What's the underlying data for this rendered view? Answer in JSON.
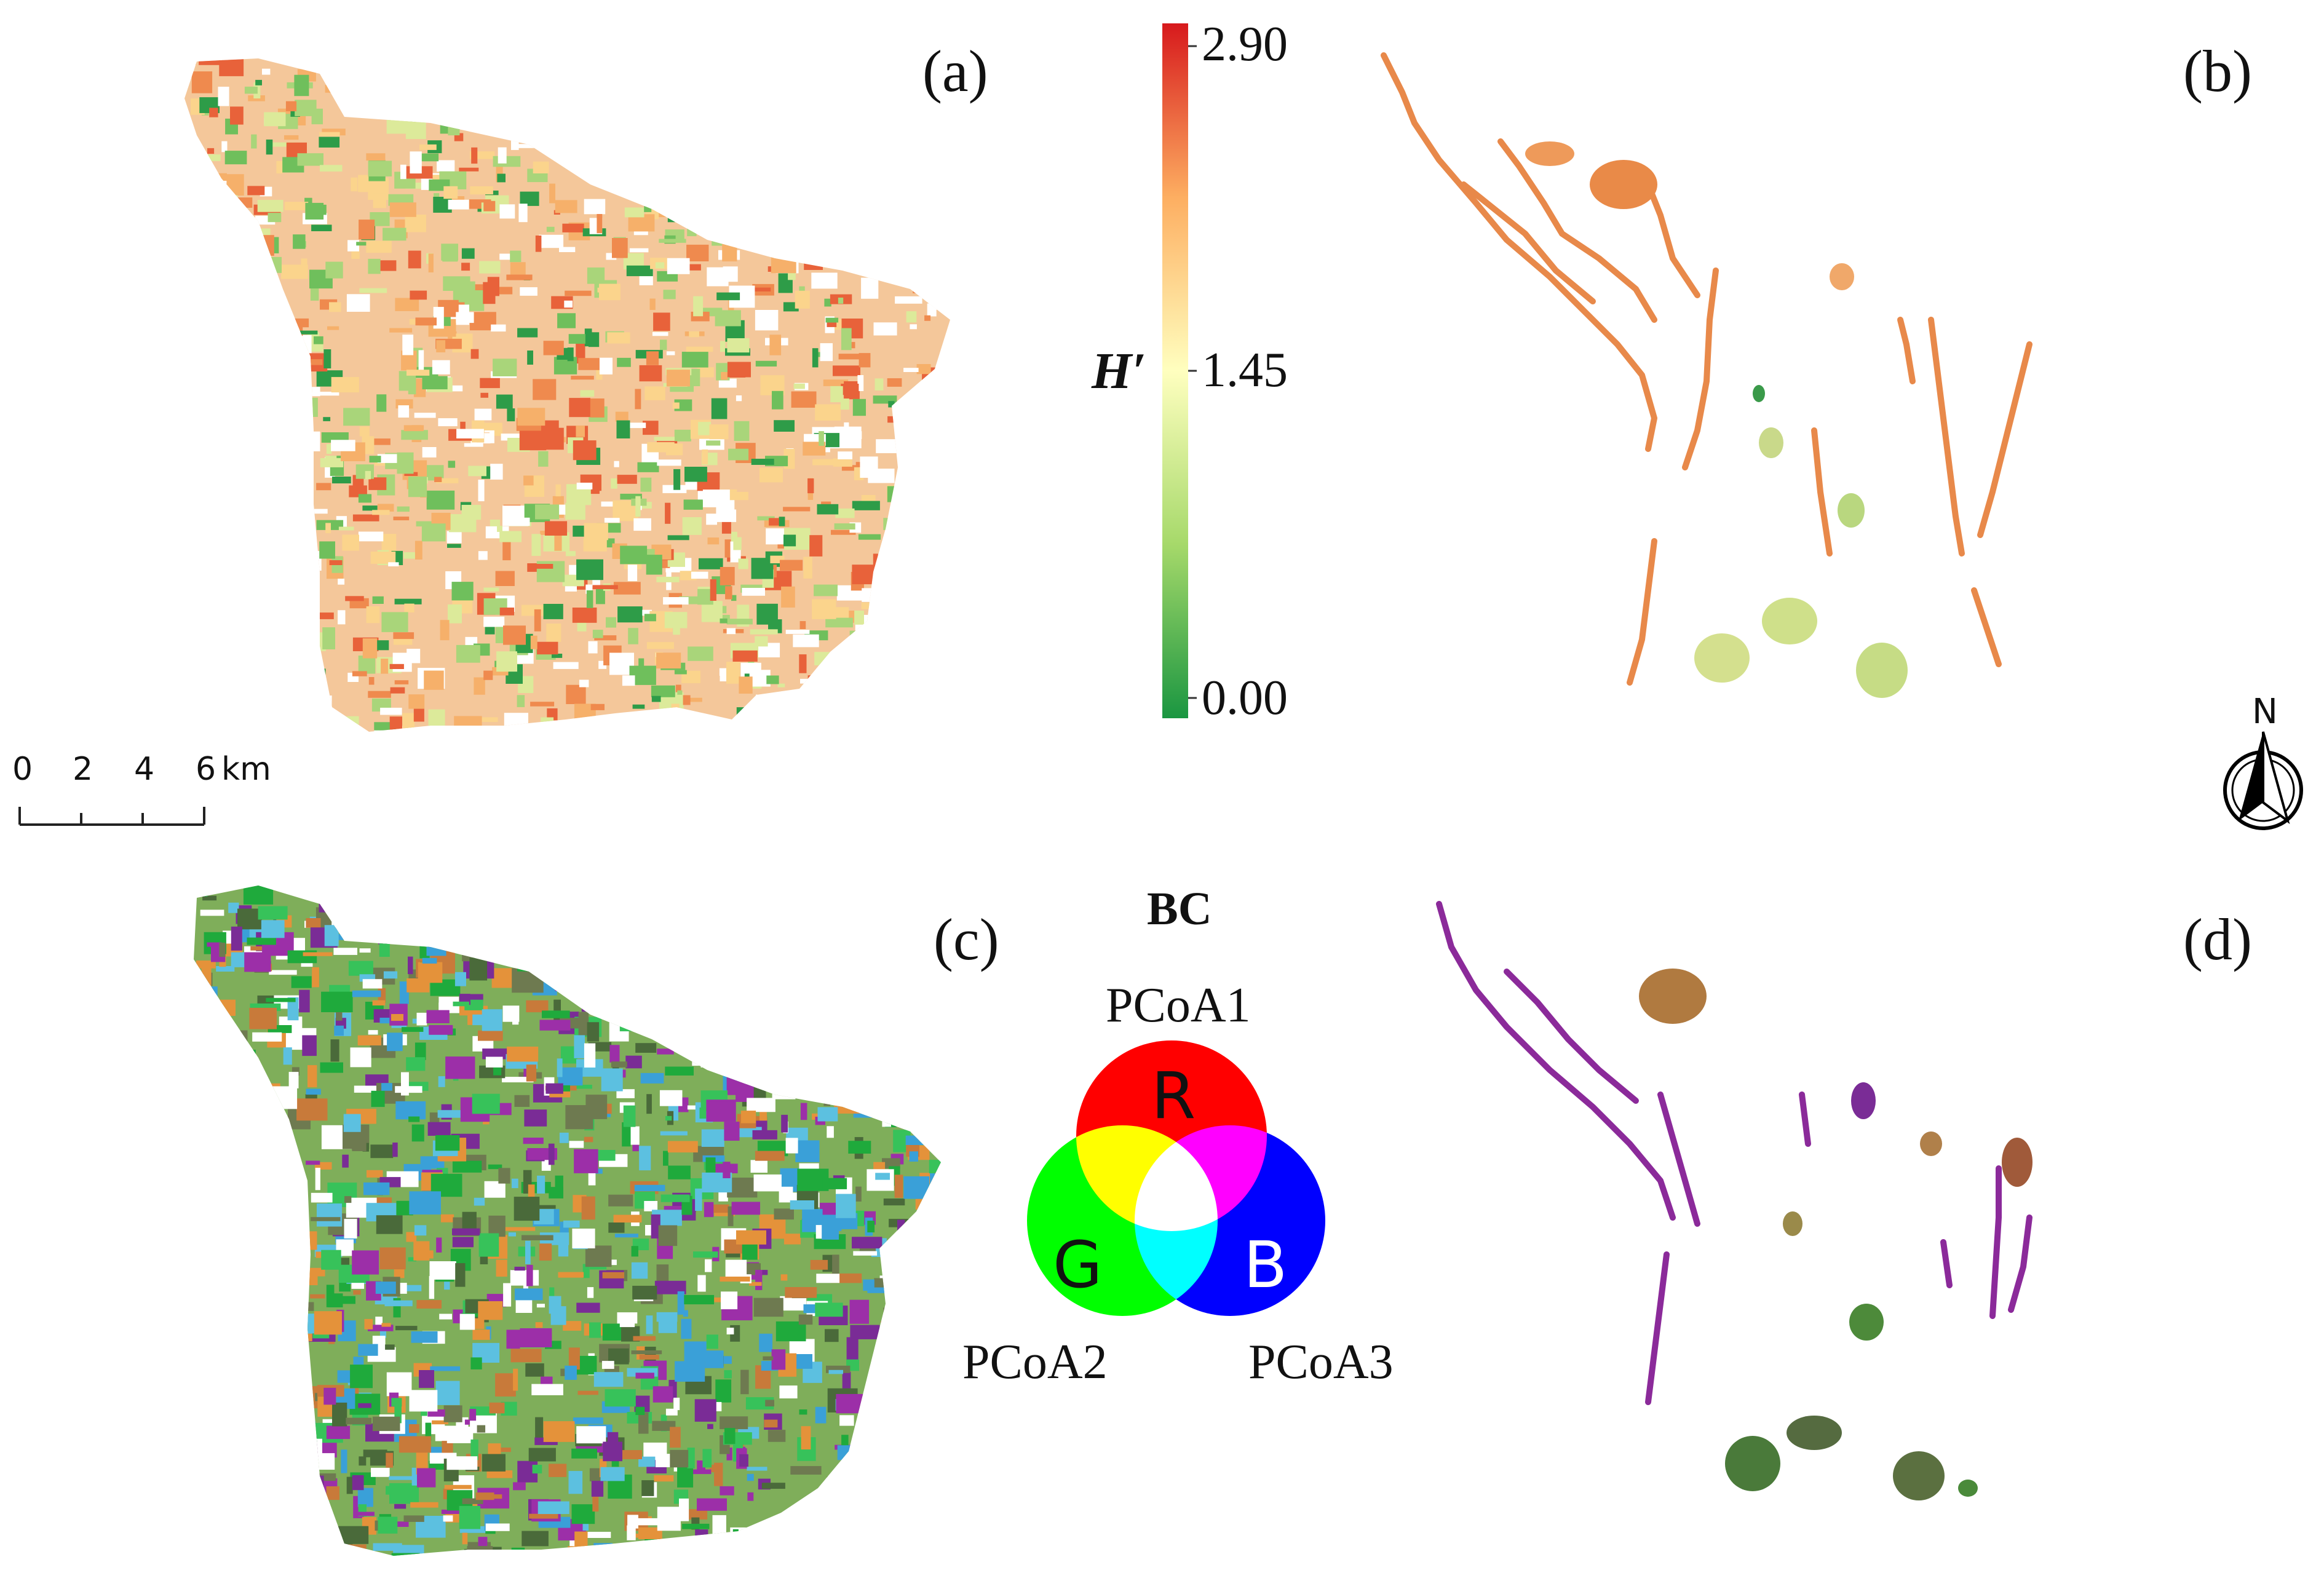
{
  "panels": {
    "a": {
      "label": "(a)"
    },
    "b": {
      "label": "(b)"
    },
    "c": {
      "label": "(c)"
    },
    "d": {
      "label": "(d)"
    }
  },
  "shannon_legend": {
    "title": "H′",
    "max_label": "2.90",
    "mid_label": "1.45",
    "min_label": "0.00",
    "min_value": 0.0,
    "max_value": 2.9,
    "colors": {
      "low": "#1a9641",
      "mid": "#ffffbf",
      "high": "#d7191c"
    }
  },
  "bc_legend": {
    "title": "BC",
    "axes": [
      {
        "letter": "R",
        "label": "PCoA1",
        "color": "#ff0000"
      },
      {
        "letter": "G",
        "label": "PCoA2",
        "color": "#00ff00"
      },
      {
        "letter": "B",
        "label": "PCoA3",
        "color": "#0000ff"
      }
    ]
  },
  "scale_bar": {
    "tick_labels": [
      "0",
      "2",
      "4",
      "6"
    ],
    "unit": "km"
  },
  "north_arrow": {
    "label": "N"
  }
}
